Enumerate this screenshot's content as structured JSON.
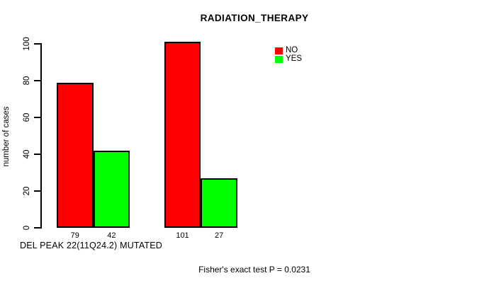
{
  "chart_data": {
    "type": "bar",
    "title": "RADIATION_THERAPY",
    "ylabel": "number of cases",
    "xlabel": "DEL PEAK 22(11Q24.2) MUTATED",
    "footnote": "Fisher's exact test P = 0.0231",
    "ylim": [
      0,
      100
    ],
    "yticks": [
      0,
      20,
      40,
      60,
      80,
      100
    ],
    "grid": false,
    "legend_position": "top-right-of-plot",
    "colors": {
      "no": "#ff0000",
      "yes": "#00ff00",
      "text": "#000000",
      "background": "#ffffff"
    },
    "legend": [
      {
        "label": "NO",
        "color": "#ff0000"
      },
      {
        "label": "YES",
        "color": "#00ff00"
      }
    ],
    "groups": [
      {
        "bars": [
          {
            "series": "NO",
            "value": 79,
            "label": "79",
            "color": "#ff0000"
          },
          {
            "series": "YES",
            "value": 42,
            "label": "42",
            "color": "#00ff00"
          }
        ]
      },
      {
        "bars": [
          {
            "series": "NO",
            "value": 101,
            "label": "101",
            "color": "#ff0000"
          },
          {
            "series": "YES",
            "value": 27,
            "label": "27",
            "color": "#00ff00"
          }
        ]
      }
    ]
  }
}
